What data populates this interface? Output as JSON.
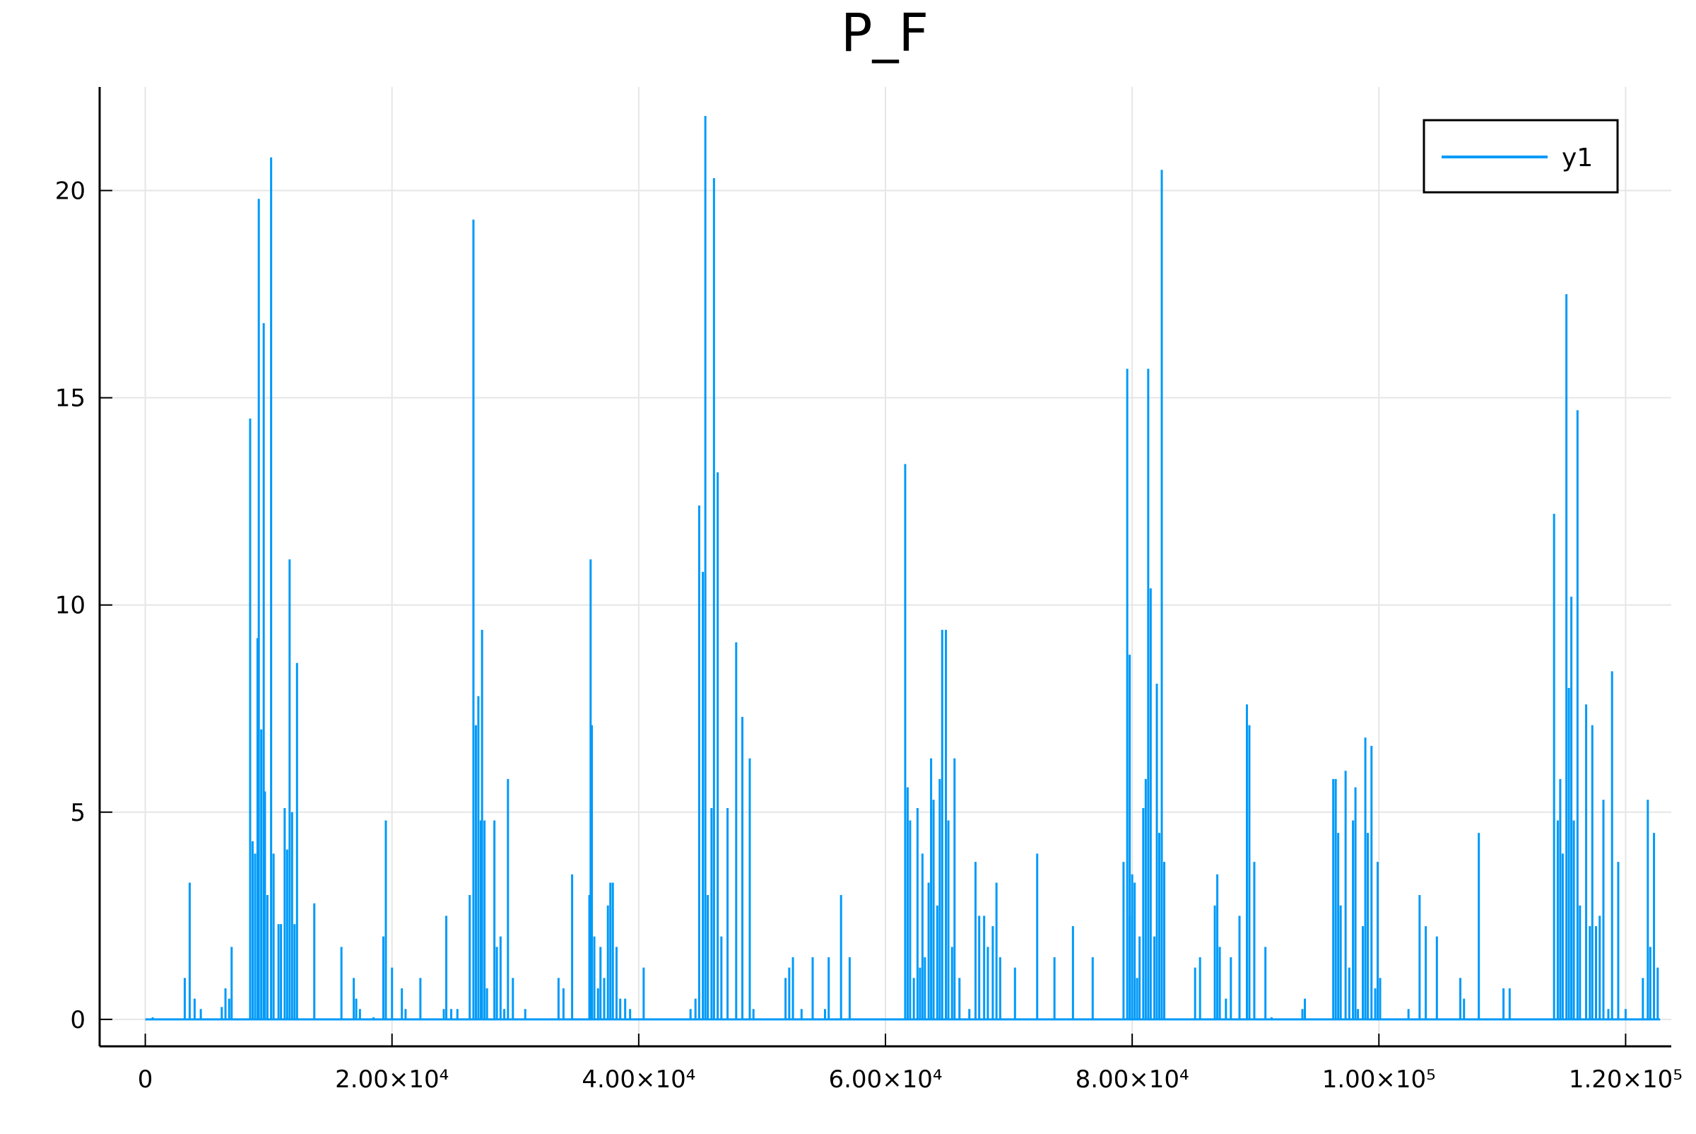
{
  "chart_data": {
    "type": "line",
    "title": "P_F",
    "xlabel": "",
    "ylabel": "",
    "xlim": [
      -3700,
      123700
    ],
    "ylim": [
      -0.65,
      22.5
    ],
    "grid": true,
    "legend_position": "top-right",
    "x_ticks": [
      {
        "value": 0,
        "label": "0"
      },
      {
        "value": 20000,
        "label": "2.00×10⁴"
      },
      {
        "value": 40000,
        "label": "4.00×10⁴"
      },
      {
        "value": 60000,
        "label": "6.00×10⁴"
      },
      {
        "value": 80000,
        "label": "8.00×10⁴"
      },
      {
        "value": 100000,
        "label": "1.00×10⁵"
      },
      {
        "value": 120000,
        "label": "1.20×10⁵"
      }
    ],
    "y_ticks": [
      {
        "value": 0,
        "label": "0"
      },
      {
        "value": 5,
        "label": "5"
      },
      {
        "value": 10,
        "label": "10"
      },
      {
        "value": 15,
        "label": "15"
      },
      {
        "value": 20,
        "label": "20"
      }
    ],
    "x_end": 122800,
    "series": [
      {
        "name": "y1",
        "color": "#009AF9",
        "spikes": [
          [
            600,
            0.05
          ],
          [
            3200,
            1.0
          ],
          [
            3600,
            3.3
          ],
          [
            4000,
            0.5
          ],
          [
            4500,
            0.25
          ],
          [
            6200,
            0.3
          ],
          [
            6500,
            0.75
          ],
          [
            6800,
            0.5
          ],
          [
            7000,
            1.75
          ],
          [
            8500,
            14.5
          ],
          [
            8700,
            4.3
          ],
          [
            8900,
            4.0
          ],
          [
            9100,
            9.2
          ],
          [
            9200,
            19.8
          ],
          [
            9400,
            7.0
          ],
          [
            9600,
            16.8
          ],
          [
            9700,
            5.5
          ],
          [
            9900,
            3.0
          ],
          [
            10200,
            20.8
          ],
          [
            10400,
            4.0
          ],
          [
            10800,
            2.3
          ],
          [
            11000,
            2.3
          ],
          [
            11300,
            5.1
          ],
          [
            11500,
            4.1
          ],
          [
            11700,
            11.1
          ],
          [
            11900,
            5.0
          ],
          [
            12100,
            2.3
          ],
          [
            12300,
            8.6
          ],
          [
            13700,
            2.8
          ],
          [
            15900,
            1.75
          ],
          [
            16900,
            1.0
          ],
          [
            17100,
            0.5
          ],
          [
            17400,
            0.25
          ],
          [
            18500,
            0.05
          ],
          [
            19300,
            2.0
          ],
          [
            19500,
            4.8
          ],
          [
            20000,
            1.25
          ],
          [
            20800,
            0.75
          ],
          [
            21100,
            0.25
          ],
          [
            22300,
            1.0
          ],
          [
            24200,
            0.25
          ],
          [
            24400,
            2.5
          ],
          [
            24800,
            0.25
          ],
          [
            25300,
            0.25
          ],
          [
            26300,
            3.0
          ],
          [
            26600,
            19.3
          ],
          [
            26800,
            7.1
          ],
          [
            27000,
            7.8
          ],
          [
            27200,
            4.8
          ],
          [
            27300,
            9.4
          ],
          [
            27500,
            4.8
          ],
          [
            27700,
            0.75
          ],
          [
            28300,
            4.8
          ],
          [
            28500,
            1.75
          ],
          [
            28800,
            2.0
          ],
          [
            29100,
            0.25
          ],
          [
            29400,
            5.8
          ],
          [
            29800,
            1.0
          ],
          [
            30800,
            0.25
          ],
          [
            33500,
            1.0
          ],
          [
            33900,
            0.75
          ],
          [
            34600,
            3.5
          ],
          [
            36000,
            3.0
          ],
          [
            36100,
            11.1
          ],
          [
            36200,
            7.1
          ],
          [
            36400,
            2.0
          ],
          [
            36700,
            0.75
          ],
          [
            36900,
            1.75
          ],
          [
            37200,
            1.0
          ],
          [
            37500,
            2.75
          ],
          [
            37700,
            3.3
          ],
          [
            37900,
            3.3
          ],
          [
            38200,
            1.75
          ],
          [
            38500,
            0.5
          ],
          [
            38900,
            0.5
          ],
          [
            39300,
            0.25
          ],
          [
            40400,
            1.25
          ],
          [
            44200,
            0.25
          ],
          [
            44600,
            0.5
          ],
          [
            44900,
            12.4
          ],
          [
            45200,
            10.8
          ],
          [
            45400,
            21.8
          ],
          [
            45600,
            3.0
          ],
          [
            45900,
            5.1
          ],
          [
            46100,
            20.3
          ],
          [
            46400,
            13.2
          ],
          [
            46700,
            2.0
          ],
          [
            47200,
            5.1
          ],
          [
            47900,
            9.1
          ],
          [
            48400,
            7.3
          ],
          [
            49000,
            6.3
          ],
          [
            49300,
            0.25
          ],
          [
            51900,
            1.0
          ],
          [
            52200,
            1.25
          ],
          [
            52500,
            1.5
          ],
          [
            53200,
            0.25
          ],
          [
            54100,
            1.5
          ],
          [
            55100,
            0.25
          ],
          [
            55400,
            1.5
          ],
          [
            56400,
            3.0
          ],
          [
            57100,
            1.5
          ],
          [
            61600,
            13.4
          ],
          [
            61800,
            5.6
          ],
          [
            62000,
            4.8
          ],
          [
            62300,
            1.0
          ],
          [
            62600,
            5.1
          ],
          [
            62800,
            1.25
          ],
          [
            63000,
            4.0
          ],
          [
            63200,
            1.5
          ],
          [
            63500,
            3.3
          ],
          [
            63700,
            6.3
          ],
          [
            63900,
            5.3
          ],
          [
            64200,
            2.75
          ],
          [
            64400,
            5.8
          ],
          [
            64600,
            9.4
          ],
          [
            64900,
            9.4
          ],
          [
            65100,
            4.8
          ],
          [
            65400,
            1.75
          ],
          [
            65600,
            6.3
          ],
          [
            66000,
            1.0
          ],
          [
            66800,
            0.25
          ],
          [
            67300,
            3.8
          ],
          [
            67600,
            2.5
          ],
          [
            68000,
            2.5
          ],
          [
            68300,
            1.75
          ],
          [
            68700,
            2.25
          ],
          [
            69000,
            3.3
          ],
          [
            69300,
            1.5
          ],
          [
            70500,
            1.25
          ],
          [
            72300,
            4.0
          ],
          [
            73700,
            1.5
          ],
          [
            75200,
            2.25
          ],
          [
            76800,
            1.5
          ],
          [
            79300,
            3.8
          ],
          [
            79800,
            2.5
          ],
          [
            80200,
            3.3
          ],
          [
            80400,
            1.0
          ],
          [
            79600,
            15.7
          ],
          [
            79800,
            8.8
          ],
          [
            80000,
            3.5
          ],
          [
            80600,
            2.0
          ],
          [
            80900,
            5.1
          ],
          [
            81100,
            5.8
          ],
          [
            81300,
            15.7
          ],
          [
            81500,
            10.4
          ],
          [
            81800,
            2.0
          ],
          [
            82000,
            8.1
          ],
          [
            82200,
            4.5
          ],
          [
            82400,
            20.5
          ],
          [
            82600,
            3.8
          ],
          [
            85100,
            1.25
          ],
          [
            85500,
            1.5
          ],
          [
            86700,
            2.75
          ],
          [
            86900,
            3.5
          ],
          [
            87100,
            1.75
          ],
          [
            87600,
            0.5
          ],
          [
            88000,
            1.5
          ],
          [
            88700,
            2.5
          ],
          [
            89300,
            7.6
          ],
          [
            89500,
            7.1
          ],
          [
            89900,
            3.8
          ],
          [
            90800,
            1.75
          ],
          [
            91300,
            0.05
          ],
          [
            93800,
            0.25
          ],
          [
            94000,
            0.5
          ],
          [
            96300,
            5.8
          ],
          [
            96500,
            5.8
          ],
          [
            96700,
            4.5
          ],
          [
            96900,
            2.75
          ],
          [
            97300,
            6.0
          ],
          [
            97600,
            1.25
          ],
          [
            97900,
            4.8
          ],
          [
            98100,
            5.6
          ],
          [
            98300,
            0.25
          ],
          [
            98700,
            2.25
          ],
          [
            98900,
            6.8
          ],
          [
            99100,
            4.5
          ],
          [
            99400,
            6.6
          ],
          [
            99700,
            0.75
          ],
          [
            99900,
            3.8
          ],
          [
            100100,
            1.0
          ],
          [
            102400,
            0.25
          ],
          [
            103300,
            3.0
          ],
          [
            103800,
            2.25
          ],
          [
            104700,
            2.0
          ],
          [
            106600,
            1.0
          ],
          [
            106900,
            0.5
          ],
          [
            108100,
            4.5
          ],
          [
            110100,
            0.75
          ],
          [
            110600,
            0.75
          ],
          [
            114200,
            12.2
          ],
          [
            114500,
            4.8
          ],
          [
            114700,
            5.8
          ],
          [
            114900,
            4.0
          ],
          [
            115200,
            17.5
          ],
          [
            115400,
            8.0
          ],
          [
            115600,
            10.2
          ],
          [
            115800,
            4.8
          ],
          [
            116100,
            14.7
          ],
          [
            116300,
            2.75
          ],
          [
            116800,
            7.6
          ],
          [
            117100,
            2.25
          ],
          [
            117300,
            7.1
          ],
          [
            117600,
            2.25
          ],
          [
            117900,
            2.5
          ],
          [
            118200,
            5.3
          ],
          [
            118600,
            0.25
          ],
          [
            118900,
            8.4
          ],
          [
            119400,
            3.8
          ],
          [
            120000,
            0.25
          ],
          [
            121400,
            1.0
          ],
          [
            121800,
            5.3
          ],
          [
            122000,
            1.75
          ],
          [
            122300,
            4.5
          ],
          [
            122600,
            1.25
          ]
        ]
      }
    ]
  }
}
